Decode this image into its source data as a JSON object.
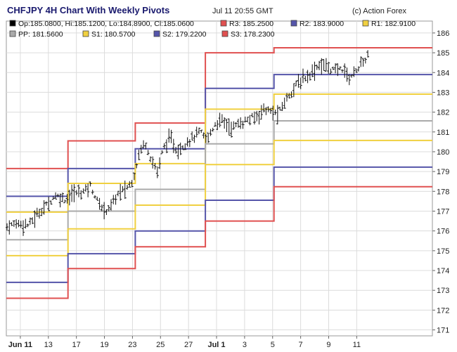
{
  "header": {
    "title": "CHFJPY 4H Chart With Weekly Pivots",
    "timestamp": "Jul 11 20:55 GMT",
    "credit": "(c) Action Forex"
  },
  "legend": [
    {
      "label": "Op:185.0800, Hi:185.1200, Lo:184.8900, Cl:185.0600",
      "color": "#000000"
    },
    {
      "label": "R3: 185.2500",
      "color": "#e05050"
    },
    {
      "label": "R2: 183.9000",
      "color": "#5555aa"
    },
    {
      "label": "R1: 182.9100",
      "color": "#f0d040"
    },
    {
      "label": "PP: 181.5600",
      "color": "#aaaaaa"
    },
    {
      "label": "S1: 180.5700",
      "color": "#f0d040"
    },
    {
      "label": "S2: 179.2200",
      "color": "#5555aa"
    },
    {
      "label": "S3: 178.2300",
      "color": "#e05050"
    }
  ],
  "chart_data": {
    "type": "line",
    "title": "CHFJPY 4H Chart With Weekly Pivots",
    "ylim": [
      170.7,
      186.6
    ],
    "xlim": [
      0,
      30.4
    ],
    "y_ticks": [
      171,
      172,
      173,
      174,
      175,
      176,
      177,
      178,
      179,
      180,
      181,
      182,
      183,
      184,
      185,
      186
    ],
    "x_ticks": [
      {
        "x": 1,
        "label": "Jun 11",
        "bold": true
      },
      {
        "x": 3,
        "label": "13"
      },
      {
        "x": 5,
        "label": "17"
      },
      {
        "x": 7,
        "label": "19"
      },
      {
        "x": 9,
        "label": "23"
      },
      {
        "x": 11,
        "label": "25"
      },
      {
        "x": 13,
        "label": "27"
      },
      {
        "x": 15,
        "label": "Jul 1",
        "bold": true
      },
      {
        "x": 17,
        "label": "3"
      },
      {
        "x": 19,
        "label": "5"
      },
      {
        "x": 21,
        "label": "7"
      },
      {
        "x": 23,
        "label": "9"
      },
      {
        "x": 25,
        "label": "11"
      }
    ],
    "grid": true,
    "week_breaks": [
      0,
      4.4,
      9.2,
      14.2,
      19.1,
      30.4
    ],
    "pivots": [
      {
        "name": "R3",
        "color": "#e05050",
        "values": [
          179.15,
          180.55,
          181.45,
          185.0,
          185.25
        ]
      },
      {
        "name": "R2",
        "color": "#5555aa",
        "values": [
          177.75,
          179.15,
          180.15,
          183.2,
          183.9
        ]
      },
      {
        "name": "R1",
        "color": "#f0d040",
        "values": [
          176.95,
          178.4,
          179.4,
          182.15,
          182.91
        ]
      },
      {
        "name": "PP",
        "color": "#aaaaaa",
        "values": [
          175.55,
          177.0,
          178.1,
          180.4,
          181.56
        ]
      },
      {
        "name": "S1",
        "color": "#f0d040",
        "values": [
          174.75,
          176.1,
          177.3,
          179.35,
          180.57
        ]
      },
      {
        "name": "S2",
        "color": "#5555aa",
        "values": [
          173.4,
          174.85,
          176.0,
          177.55,
          179.22
        ]
      },
      {
        "name": "S3",
        "color": "#e05050",
        "values": [
          172.6,
          174.1,
          175.2,
          176.5,
          178.23
        ]
      }
    ],
    "price_path": [
      [
        0.0,
        176.2
      ],
      [
        0.8,
        176.4
      ],
      [
        1.6,
        176.3
      ],
      [
        2.3,
        176.9
      ],
      [
        3.0,
        177.4
      ],
      [
        3.5,
        177.8
      ],
      [
        4.2,
        177.6
      ],
      [
        4.8,
        177.9
      ],
      [
        5.5,
        178.0
      ],
      [
        6.0,
        178.3
      ],
      [
        6.5,
        177.5
      ],
      [
        7.0,
        177.0
      ],
      [
        7.5,
        177.3
      ],
      [
        8.0,
        177.9
      ],
      [
        8.5,
        178.1
      ],
      [
        9.0,
        178.5
      ],
      [
        9.5,
        180.0
      ],
      [
        9.9,
        180.5
      ],
      [
        10.4,
        179.5
      ],
      [
        10.8,
        179.0
      ],
      [
        11.2,
        180.2
      ],
      [
        11.7,
        180.7
      ],
      [
        12.2,
        180.0
      ],
      [
        12.7,
        180.4
      ],
      [
        13.3,
        180.7
      ],
      [
        13.8,
        181.0
      ],
      [
        14.3,
        180.6
      ],
      [
        14.9,
        181.4
      ],
      [
        15.4,
        181.6
      ],
      [
        16.0,
        181.2
      ],
      [
        16.6,
        181.4
      ],
      [
        17.2,
        181.6
      ],
      [
        17.9,
        181.8
      ],
      [
        18.4,
        182.2
      ],
      [
        18.9,
        182.0
      ],
      [
        19.4,
        181.9
      ],
      [
        20.0,
        182.7
      ],
      [
        20.6,
        183.3
      ],
      [
        21.2,
        183.7
      ],
      [
        21.8,
        184.0
      ],
      [
        22.3,
        184.4
      ],
      [
        22.9,
        184.3
      ],
      [
        23.4,
        184.1
      ],
      [
        24.0,
        184.2
      ],
      [
        24.5,
        183.7
      ],
      [
        25.0,
        184.2
      ],
      [
        25.5,
        184.5
      ],
      [
        25.9,
        185.06
      ]
    ]
  }
}
